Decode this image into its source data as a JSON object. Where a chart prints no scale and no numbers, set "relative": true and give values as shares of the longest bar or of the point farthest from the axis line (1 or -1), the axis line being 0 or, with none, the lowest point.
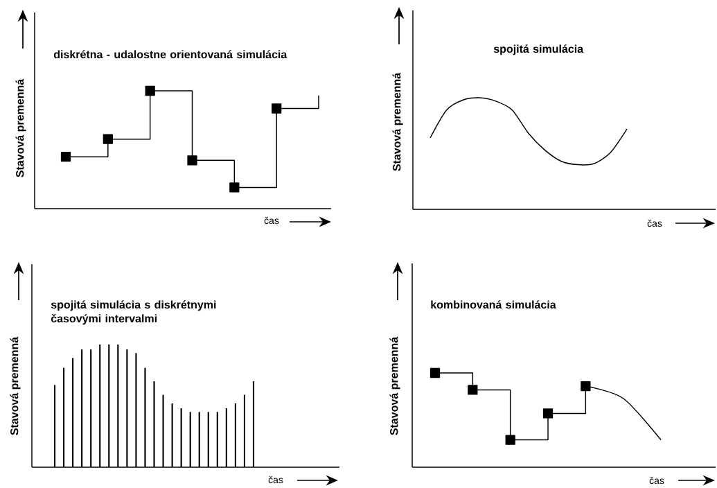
{
  "chart_data": [
    {
      "type": "step",
      "title": "diskrétna - udalostne orientovaná simulácia",
      "xlabel": "čas",
      "ylabel": "Stavová premenná",
      "relative": true,
      "categories": [
        null,
        null,
        null,
        null,
        null,
        null,
        null
      ],
      "series": [
        {
          "color": "#000000",
          "marker": "square",
          "values": [
            0.44,
            0.59,
            1,
            0.41,
            0.18,
            0.85,
            null
          ]
        },
        {
          "color": "#000000",
          "values": [
            null,
            null,
            null,
            null,
            null,
            0.85,
            0.96
          ]
        }
      ]
    },
    {
      "type": "line",
      "title": "spojitá simulácia",
      "xlabel": "čas",
      "ylabel": "Stavová premenná",
      "relative": true,
      "categories": [
        null,
        null,
        null,
        null,
        null,
        null,
        null,
        null,
        null,
        null,
        null,
        null,
        null
      ],
      "series": [
        {
          "color": "#000000",
          "values": [
            0.64,
            0.89,
            0.98,
            1,
            0.97,
            0.89,
            0.68,
            0.53,
            0.43,
            0.4,
            0.41,
            0.51,
            0.72
          ]
        }
      ]
    },
    {
      "type": "bar",
      "title": "spojitá simulácia s diskrétnymi časovými intervalmi",
      "xlabel": "čas",
      "ylabel": "Stavová premenná",
      "relative": true,
      "categories": [
        null,
        null,
        null,
        null,
        null,
        null,
        null,
        null,
        null,
        null,
        null,
        null,
        null,
        null,
        null,
        null,
        null,
        null,
        null,
        null,
        null,
        null,
        null
      ],
      "series": [
        {
          "color": "#000000",
          "values": [
            0.67,
            0.81,
            0.89,
            0.96,
            0.96,
            1,
            1,
            1,
            0.96,
            0.93,
            0.81,
            0.7,
            0.59,
            0.52,
            0.48,
            0.45,
            0.45,
            0.45,
            0.45,
            0.48,
            0.52,
            0.59,
            0.7
          ]
        }
      ]
    },
    {
      "type": "step",
      "title": "kombinovaná simulácia",
      "xlabel": "čas",
      "ylabel": "Stavová premenná",
      "relative": true,
      "categories": [
        null,
        null,
        null,
        null,
        null,
        null,
        null
      ],
      "series": [
        {
          "color": "#000000",
          "marker": "square",
          "values": [
            1,
            0.82,
            0.29,
            0.57,
            0.86,
            null,
            null
          ]
        },
        {
          "type": "line",
          "color": "#000000",
          "values": [
            null,
            null,
            null,
            null,
            0.86,
            0.73,
            0.29
          ]
        }
      ]
    }
  ]
}
